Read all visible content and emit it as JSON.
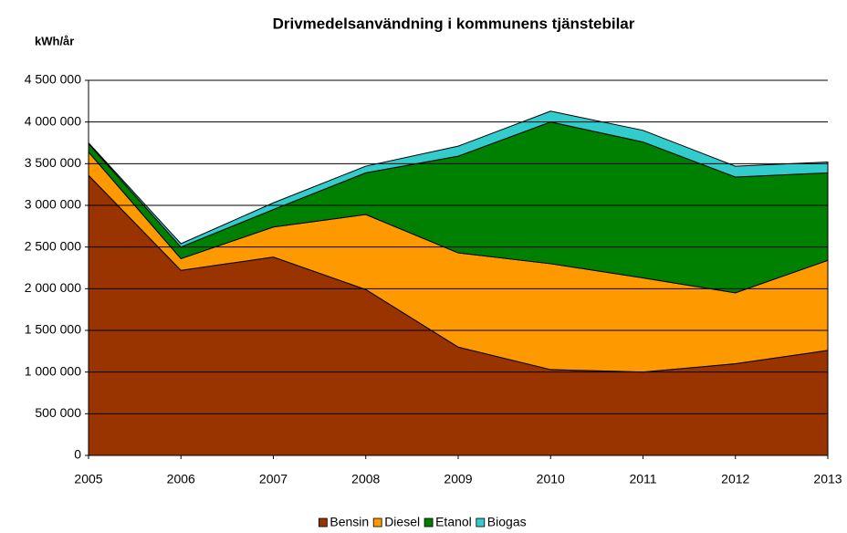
{
  "chart_data": {
    "type": "stacked_area",
    "title": "Drivmedelsanvändning i kommunens tjänstebilar",
    "y_label": "kWh/år",
    "categories": [
      "2005",
      "2006",
      "2007",
      "2008",
      "2009",
      "2010",
      "2011",
      "2012",
      "2013"
    ],
    "series": [
      {
        "name": "Bensin",
        "color": "#993300",
        "values": [
          3360000,
          2220000,
          2380000,
          1990000,
          1300000,
          1030000,
          1000000,
          1100000,
          1260000
        ]
      },
      {
        "name": "Diesel",
        "color": "#ff9900",
        "values": [
          280000,
          140000,
          360000,
          900000,
          1130000,
          1270000,
          1130000,
          850000,
          1080000
        ]
      },
      {
        "name": "Etanol",
        "color": "#008000",
        "values": [
          100000,
          140000,
          210000,
          500000,
          1160000,
          1700000,
          1630000,
          1390000,
          1050000
        ]
      },
      {
        "name": "Biogas",
        "color": "#33cccc",
        "values": [
          10000,
          40000,
          80000,
          80000,
          120000,
          130000,
          140000,
          130000,
          130000
        ]
      }
    ],
    "ylim": [
      0,
      4500000
    ],
    "yticks": [
      0,
      {
        "value": 500000,
        "label": "500 000"
      },
      {
        "value": 1000000,
        "label": "1 000 000"
      },
      {
        "value": 1500000,
        "label": "1 500 000"
      },
      {
        "value": 2000000,
        "label": "2 000 000"
      },
      {
        "value": 2500000,
        "label": "2 500 000"
      },
      {
        "value": 3000000,
        "label": "3 000 000"
      },
      {
        "value": 3500000,
        "label": "3 500 000"
      },
      {
        "value": 4000000,
        "label": "4 000 000"
      },
      {
        "value": 4500000,
        "label": "4 500 000"
      }
    ],
    "grid": true,
    "legend": "bottom"
  }
}
